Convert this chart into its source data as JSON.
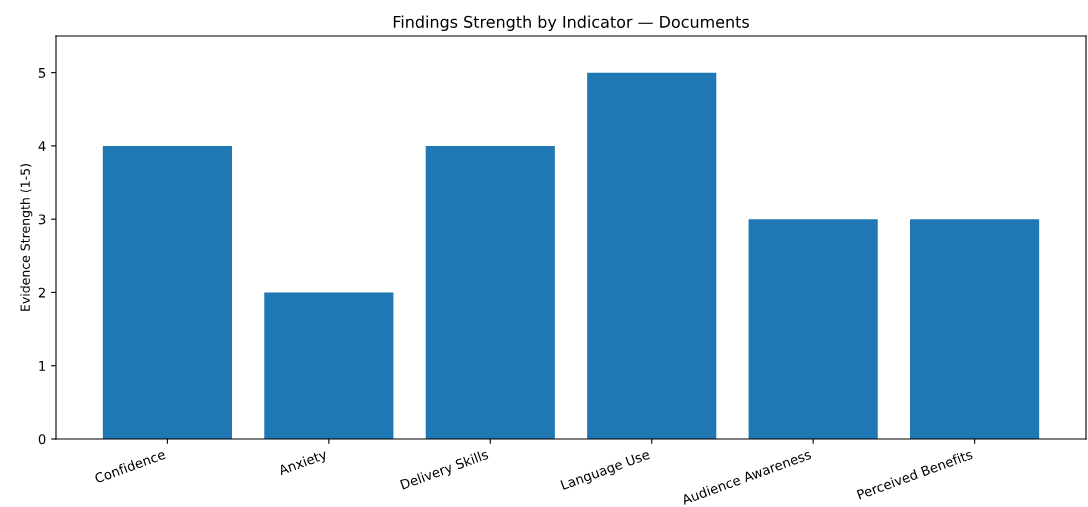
{
  "chart_data": {
    "type": "bar",
    "title": "Findings Strength by Indicator — Documents",
    "ylabel": "Evidence Strength (1-5)",
    "categories": [
      "Confidence",
      "Anxiety",
      "Delivery Skills",
      "Language Use",
      "Audience Awareness",
      "Perceived Benefits"
    ],
    "values": [
      4,
      2,
      4,
      5,
      3,
      3
    ],
    "color": "#1f77b4",
    "ylim": [
      0,
      5.5
    ],
    "yticks": [
      0,
      1,
      2,
      3,
      4,
      5
    ],
    "grid": false,
    "legend": false
  }
}
